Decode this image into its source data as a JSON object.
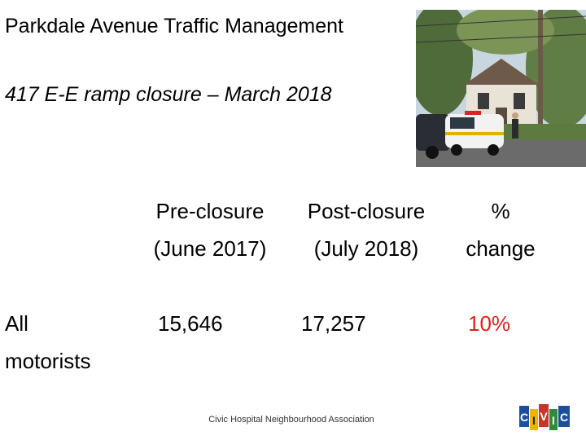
{
  "slide": {
    "title": "Parkdale Avenue Traffic Management",
    "subtitle": "417 E-E ramp closure – March 2018",
    "footer": "Civic Hospital Neighbourhood Association",
    "logo_letters": [
      "C",
      "I",
      "V",
      "I",
      "C"
    ]
  },
  "table": {
    "headers": [
      {
        "line1": "Pre-closure",
        "line2": "(June 2017)"
      },
      {
        "line1": "Post-closure",
        "line2": "(July 2018)"
      },
      {
        "line1": "%",
        "line2": "change"
      }
    ],
    "rows": [
      {
        "label_line1": "All",
        "label_line2": "motorists",
        "pre": "15,646",
        "post": "17,257",
        "change": "10%"
      }
    ]
  },
  "colors": {
    "change_highlight": "#e0201b"
  },
  "photo": {
    "icon": "street-photo-icon"
  }
}
